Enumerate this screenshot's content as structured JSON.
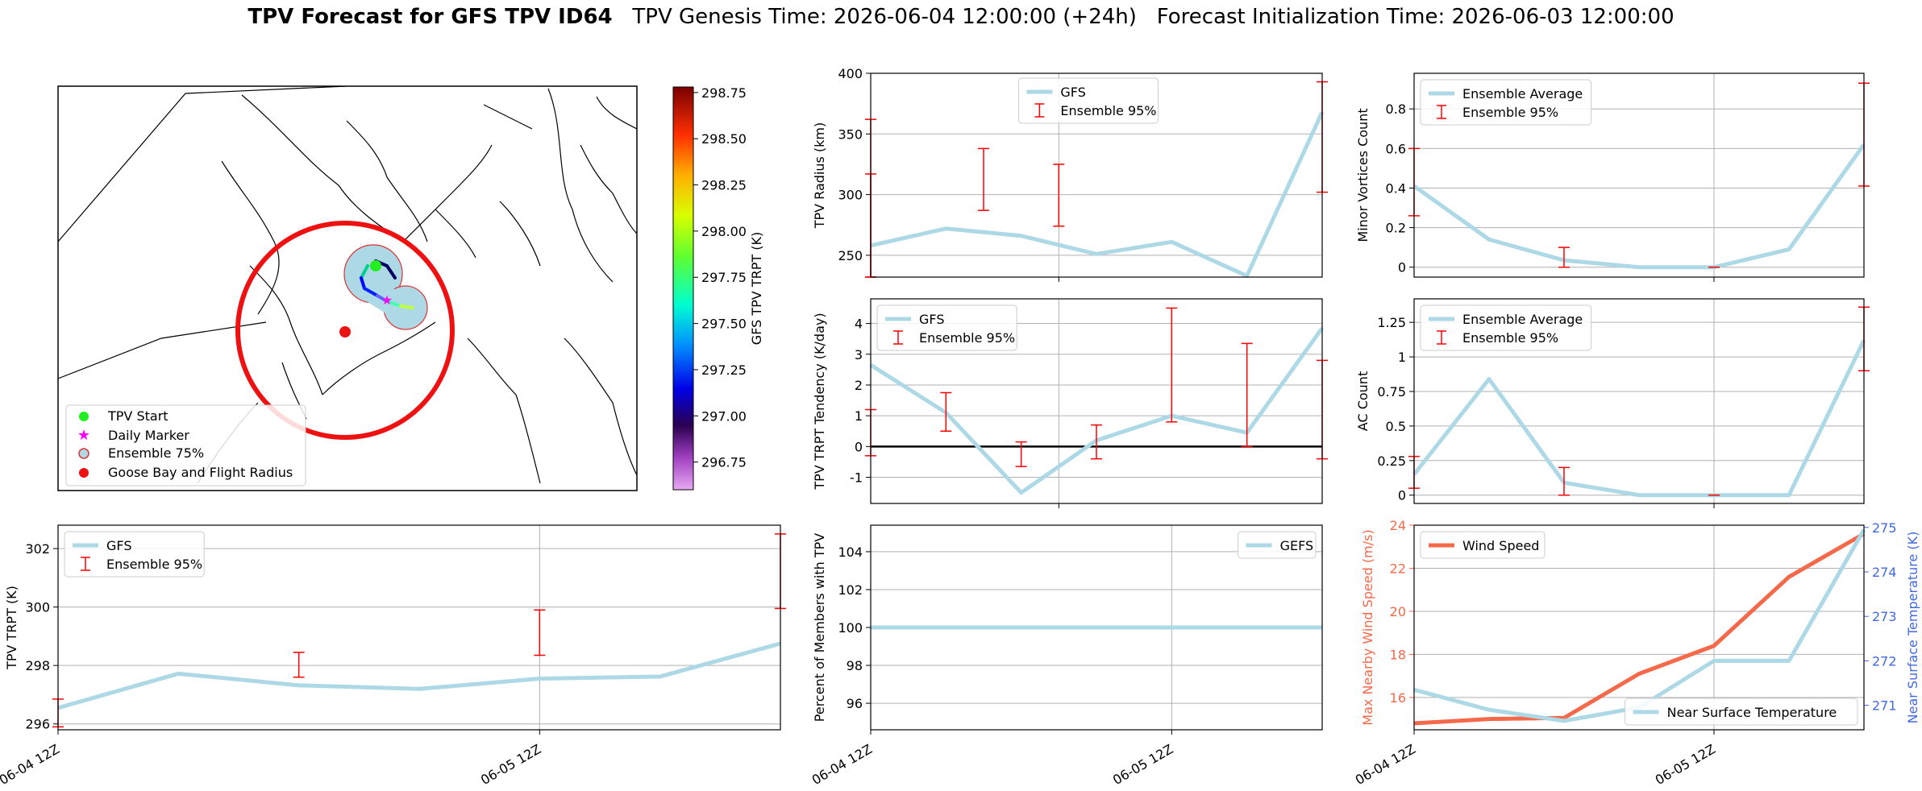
{
  "title": {
    "bold": "TPV Forecast for GFS TPV ID64",
    "genesis": "TPV Genesis Time: 2026-06-04 12:00:00 (+24h)",
    "init": "Forecast Initialization Time: 2026-06-03 12:00:00"
  },
  "colors": {
    "gfs": "#add8e6",
    "ens": "#ff0000",
    "wind": "#f4694a",
    "temp_axis": "#4169e1",
    "grid": "#b0b0b0"
  },
  "map": {
    "legend": [
      "TPV Start",
      "Daily Marker",
      "Ensemble 75%",
      "Goose Bay and Flight Radius"
    ],
    "colorbar": {
      "label": "GFS TPV TRPT (K)",
      "ticks": [
        "298.75",
        "298.50",
        "298.25",
        "298.00",
        "297.75",
        "297.50",
        "297.25",
        "297.00",
        "296.75"
      ],
      "min": 296.6,
      "max": 298.78
    }
  },
  "chart_data": [
    {
      "id": "radius",
      "type": "line",
      "ylabel": "TPV Radius (km)",
      "ylim": [
        232,
        400
      ],
      "yticks": [
        250,
        300,
        350,
        400
      ],
      "xlim": [
        0,
        6
      ],
      "x_ticks": [
        {
          "x": 2.5,
          "label": "06-05 12Z"
        }
      ],
      "show_xticklabels": false,
      "legend_pos": "top-center",
      "series": [
        {
          "name": "GFS",
          "x": [
            0,
            1,
            2,
            3,
            4,
            5,
            6
          ],
          "values": [
            258,
            272,
            266,
            251,
            261,
            233,
            368
          ]
        }
      ],
      "errorbars": {
        "name": "Ensemble 95%",
        "x": [
          0,
          1.5,
          2.5,
          6
        ],
        "low": [
          0,
          287,
          274,
          302
        ],
        "high": [
          317,
          338,
          325,
          393
        ],
        "extra": [
          {
            "x": 0,
            "low": 0,
            "high": 362
          }
        ]
      }
    },
    {
      "id": "tendency",
      "type": "line",
      "ylabel": "TPV TRPT Tendency (K/day)",
      "ylim": [
        -1.85,
        4.8
      ],
      "yticks": [
        -1,
        0,
        1,
        2,
        3,
        4
      ],
      "xlim": [
        0,
        6
      ],
      "x_ticks": [
        {
          "x": 2.5,
          "label": "06-05 12Z"
        }
      ],
      "show_xticklabels": false,
      "legend_pos": "top-left",
      "zero_line": true,
      "series": [
        {
          "name": "GFS",
          "x": [
            0,
            1,
            2,
            3,
            4,
            5,
            6
          ],
          "values": [
            2.65,
            1.1,
            -1.5,
            0.2,
            1.0,
            0.45,
            3.85
          ]
        }
      ],
      "errorbars": {
        "name": "Ensemble 95%",
        "x": [
          0,
          1,
          2,
          3,
          4,
          5,
          6
        ],
        "low": [
          -0.3,
          0.5,
          -0.65,
          -0.4,
          0.8,
          0.0,
          -0.4
        ],
        "high": [
          1.2,
          1.75,
          0.15,
          0.7,
          4.5,
          3.35,
          2.8
        ]
      }
    },
    {
      "id": "trpt",
      "type": "line",
      "ylabel": "TPV TRPT (K)",
      "ylim": [
        295.8,
        302.8
      ],
      "yticks": [
        296,
        298,
        300,
        302
      ],
      "xlim": [
        0,
        6
      ],
      "x_ticks": [
        {
          "x": 0,
          "label": "06-04 12Z"
        },
        {
          "x": 4,
          "label": "06-05 12Z"
        }
      ],
      "show_xticklabels": true,
      "legend_pos": "top-left",
      "series": [
        {
          "name": "GFS",
          "x": [
            0,
            1,
            2,
            3,
            4,
            5,
            6
          ],
          "values": [
            296.55,
            297.72,
            297.32,
            297.2,
            297.55,
            297.62,
            298.75
          ]
        }
      ],
      "errorbars": {
        "name": "Ensemble 95%",
        "x": [
          0,
          2,
          4,
          6
        ],
        "low": [
          295.9,
          297.6,
          298.35,
          299.95
        ],
        "high": [
          296.85,
          298.45,
          299.9,
          302.5
        ]
      }
    },
    {
      "id": "percent",
      "type": "line",
      "ylabel": "Percent of Members with TPV",
      "ylim": [
        94.6,
        105.4
      ],
      "yticks": [
        96,
        98,
        100,
        102,
        104
      ],
      "xlim": [
        0,
        6
      ],
      "x_ticks": [
        {
          "x": 0,
          "label": "06-04 12Z"
        },
        {
          "x": 4,
          "label": "06-05 12Z"
        }
      ],
      "show_xticklabels": true,
      "legend_pos": "top-right",
      "series": [
        {
          "name": "GEFS",
          "x": [
            0,
            1,
            2,
            3,
            4,
            5,
            6
          ],
          "values": [
            100,
            100,
            100,
            100,
            100,
            100,
            100
          ]
        }
      ]
    },
    {
      "id": "minor",
      "type": "line",
      "ylabel": "Minor Vortices Count",
      "ylim": [
        -0.05,
        0.98
      ],
      "yticks": [
        0.0,
        0.2,
        0.4,
        0.6,
        0.8
      ],
      "xlim": [
        0,
        6
      ],
      "x_ticks": [
        {
          "x": 4,
          "label": "06-05 12Z"
        }
      ],
      "show_xticklabels": false,
      "legend_pos": "top-left",
      "series": [
        {
          "name": "Ensemble Average",
          "x": [
            0,
            1,
            2,
            3,
            4,
            5,
            6
          ],
          "values": [
            0.41,
            0.14,
            0.035,
            0.0,
            0.0,
            0.09,
            0.62
          ]
        }
      ],
      "errorbars": {
        "name": "Ensemble 95%",
        "x": [
          0,
          2,
          4,
          6
        ],
        "low": [
          0.26,
          0.0,
          0.0,
          0.41
        ],
        "high": [
          0.6,
          0.1,
          0.0,
          0.93
        ]
      }
    },
    {
      "id": "ac",
      "type": "line",
      "ylabel": "AC Count",
      "ylim": [
        -0.06,
        1.42
      ],
      "yticks": [
        0.0,
        0.25,
        0.5,
        0.75,
        1.0,
        1.25
      ],
      "xlim": [
        0,
        6
      ],
      "x_ticks": [
        {
          "x": 4,
          "label": "06-05 12Z"
        }
      ],
      "show_xticklabels": false,
      "legend_pos": "top-left",
      "series": [
        {
          "name": "Ensemble Average",
          "x": [
            0,
            1,
            2,
            3,
            4,
            5,
            6
          ],
          "values": [
            0.15,
            0.84,
            0.09,
            0.0,
            0.0,
            0.0,
            1.12
          ]
        }
      ],
      "errorbars": {
        "name": "Ensemble 95%",
        "x": [
          0,
          2,
          4,
          6
        ],
        "low": [
          0.05,
          0.0,
          0.0,
          0.9
        ],
        "high": [
          0.28,
          0.2,
          0.0,
          1.36
        ]
      }
    },
    {
      "id": "wind",
      "type": "line",
      "ylabel": "Max Nearby Wind Speed (m/s)",
      "ylabel2": "Near Surface Temperature (K)",
      "ylim": [
        14.5,
        24
      ],
      "yticks": [
        16,
        18,
        20,
        22,
        24
      ],
      "ylim2": [
        270.45,
        275.05
      ],
      "yticks2": [
        271,
        272,
        273,
        274,
        275
      ],
      "xlim": [
        0,
        6
      ],
      "x_ticks": [
        {
          "x": 0,
          "label": "06-04 12Z"
        },
        {
          "x": 4,
          "label": "06-05 12Z"
        }
      ],
      "show_xticklabels": true,
      "series": [
        {
          "name": "Wind Speed",
          "axis": "left",
          "x": [
            0,
            1,
            2,
            3,
            4,
            5,
            6
          ],
          "values": [
            14.8,
            15.0,
            15.05,
            17.1,
            18.4,
            21.6,
            23.6
          ]
        },
        {
          "name": "Near Surface Temperature",
          "axis": "right",
          "x": [
            0,
            1,
            2,
            3,
            4,
            5,
            6
          ],
          "values": [
            271.35,
            270.9,
            270.65,
            270.95,
            272.0,
            272.0,
            274.95
          ]
        }
      ]
    }
  ]
}
